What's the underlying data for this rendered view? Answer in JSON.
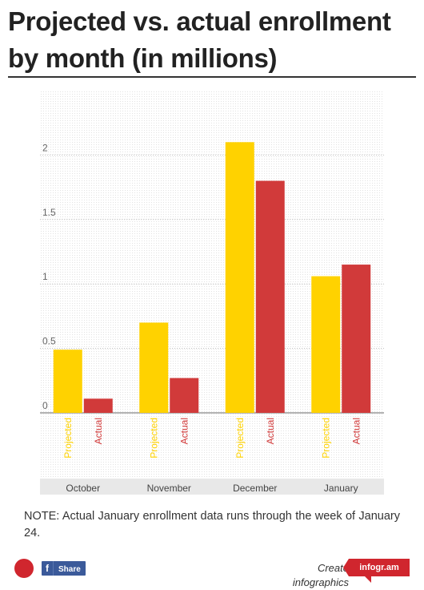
{
  "header": {
    "title": "Projected vs. actual enrollment by month (in millions)"
  },
  "chart_data": {
    "type": "bar",
    "title": "Projected vs. actual enrollment by month (in millions)",
    "categories": [
      "October",
      "November",
      "December",
      "January"
    ],
    "series": [
      {
        "name": "Projected",
        "values": [
          0.49,
          0.7,
          2.1,
          1.06
        ],
        "color": "#ffd200"
      },
      {
        "name": "Actual",
        "values": [
          0.11,
          0.27,
          1.8,
          1.15
        ],
        "color": "#d13a3a"
      }
    ],
    "bar_labels": [
      "Projected",
      "Actual"
    ],
    "ylim": [
      0,
      2.5
    ],
    "yticks": [
      0,
      0.5,
      1,
      1.5,
      2
    ],
    "ytick_labels": [
      "0",
      "0.5",
      "1",
      "1.5",
      "2"
    ],
    "grid": true
  },
  "note": "NOTE: Actual January enrollment data runs through the week of January 24.",
  "footer": {
    "share_label": "Share",
    "share_icon": "facebook-icon",
    "create_text": "Create infographics",
    "brand_text": "infogr.am",
    "colors": {
      "accent": "#d0262e",
      "facebook": "#3b5a9a"
    }
  }
}
